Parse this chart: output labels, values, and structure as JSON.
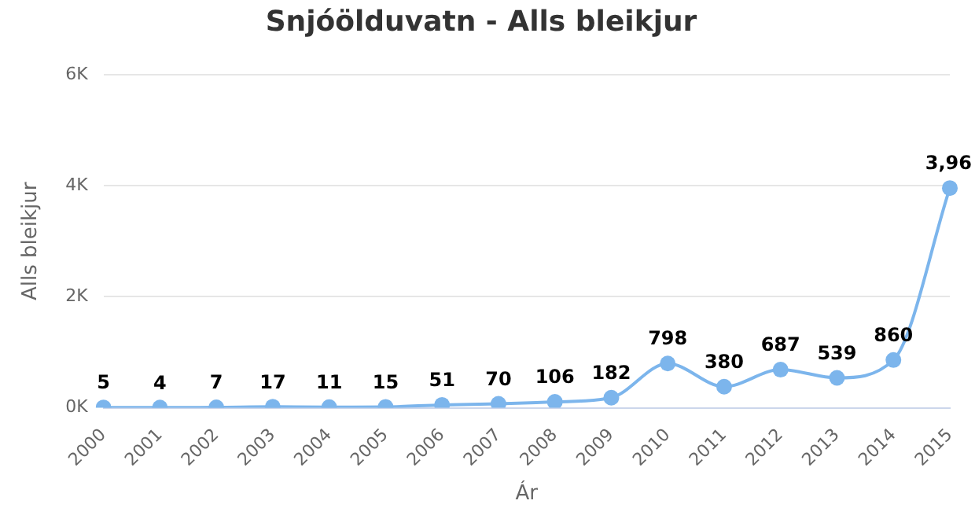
{
  "chart_data": {
    "type": "line",
    "title": "Snjóölduvatn - Alls bleikjur",
    "xlabel": "Ár",
    "ylabel": "Alls bleikjur",
    "categories": [
      "2000",
      "2001",
      "2002",
      "2003",
      "2004",
      "2005",
      "2006",
      "2007",
      "2008",
      "2009",
      "2010",
      "2011",
      "2012",
      "2013",
      "2014",
      "2015"
    ],
    "series": [
      {
        "color": "#7cb5ec",
        "values": [
          5,
          4,
          7,
          17,
          11,
          15,
          51,
          70,
          106,
          182,
          798,
          380,
          687,
          539,
          860,
          3960
        ],
        "value_labels": [
          "5",
          "4",
          "7",
          "17",
          "11",
          "15",
          "51",
          "70",
          "106",
          "182",
          "798",
          "380",
          "687",
          "539",
          "860",
          null
        ]
      }
    ],
    "annotations": [
      {
        "text": "3,96",
        "x": "2015",
        "y": 3960
      }
    ],
    "ylim": [
      0,
      6000
    ],
    "yticks": [
      {
        "value": 0,
        "label": "0K"
      },
      {
        "value": 2000,
        "label": "2K"
      },
      {
        "value": 4000,
        "label": "4K"
      },
      {
        "value": 6000,
        "label": "6K"
      }
    ],
    "grid": "y",
    "legend": false,
    "marker": "circle",
    "line_style": "solid"
  }
}
